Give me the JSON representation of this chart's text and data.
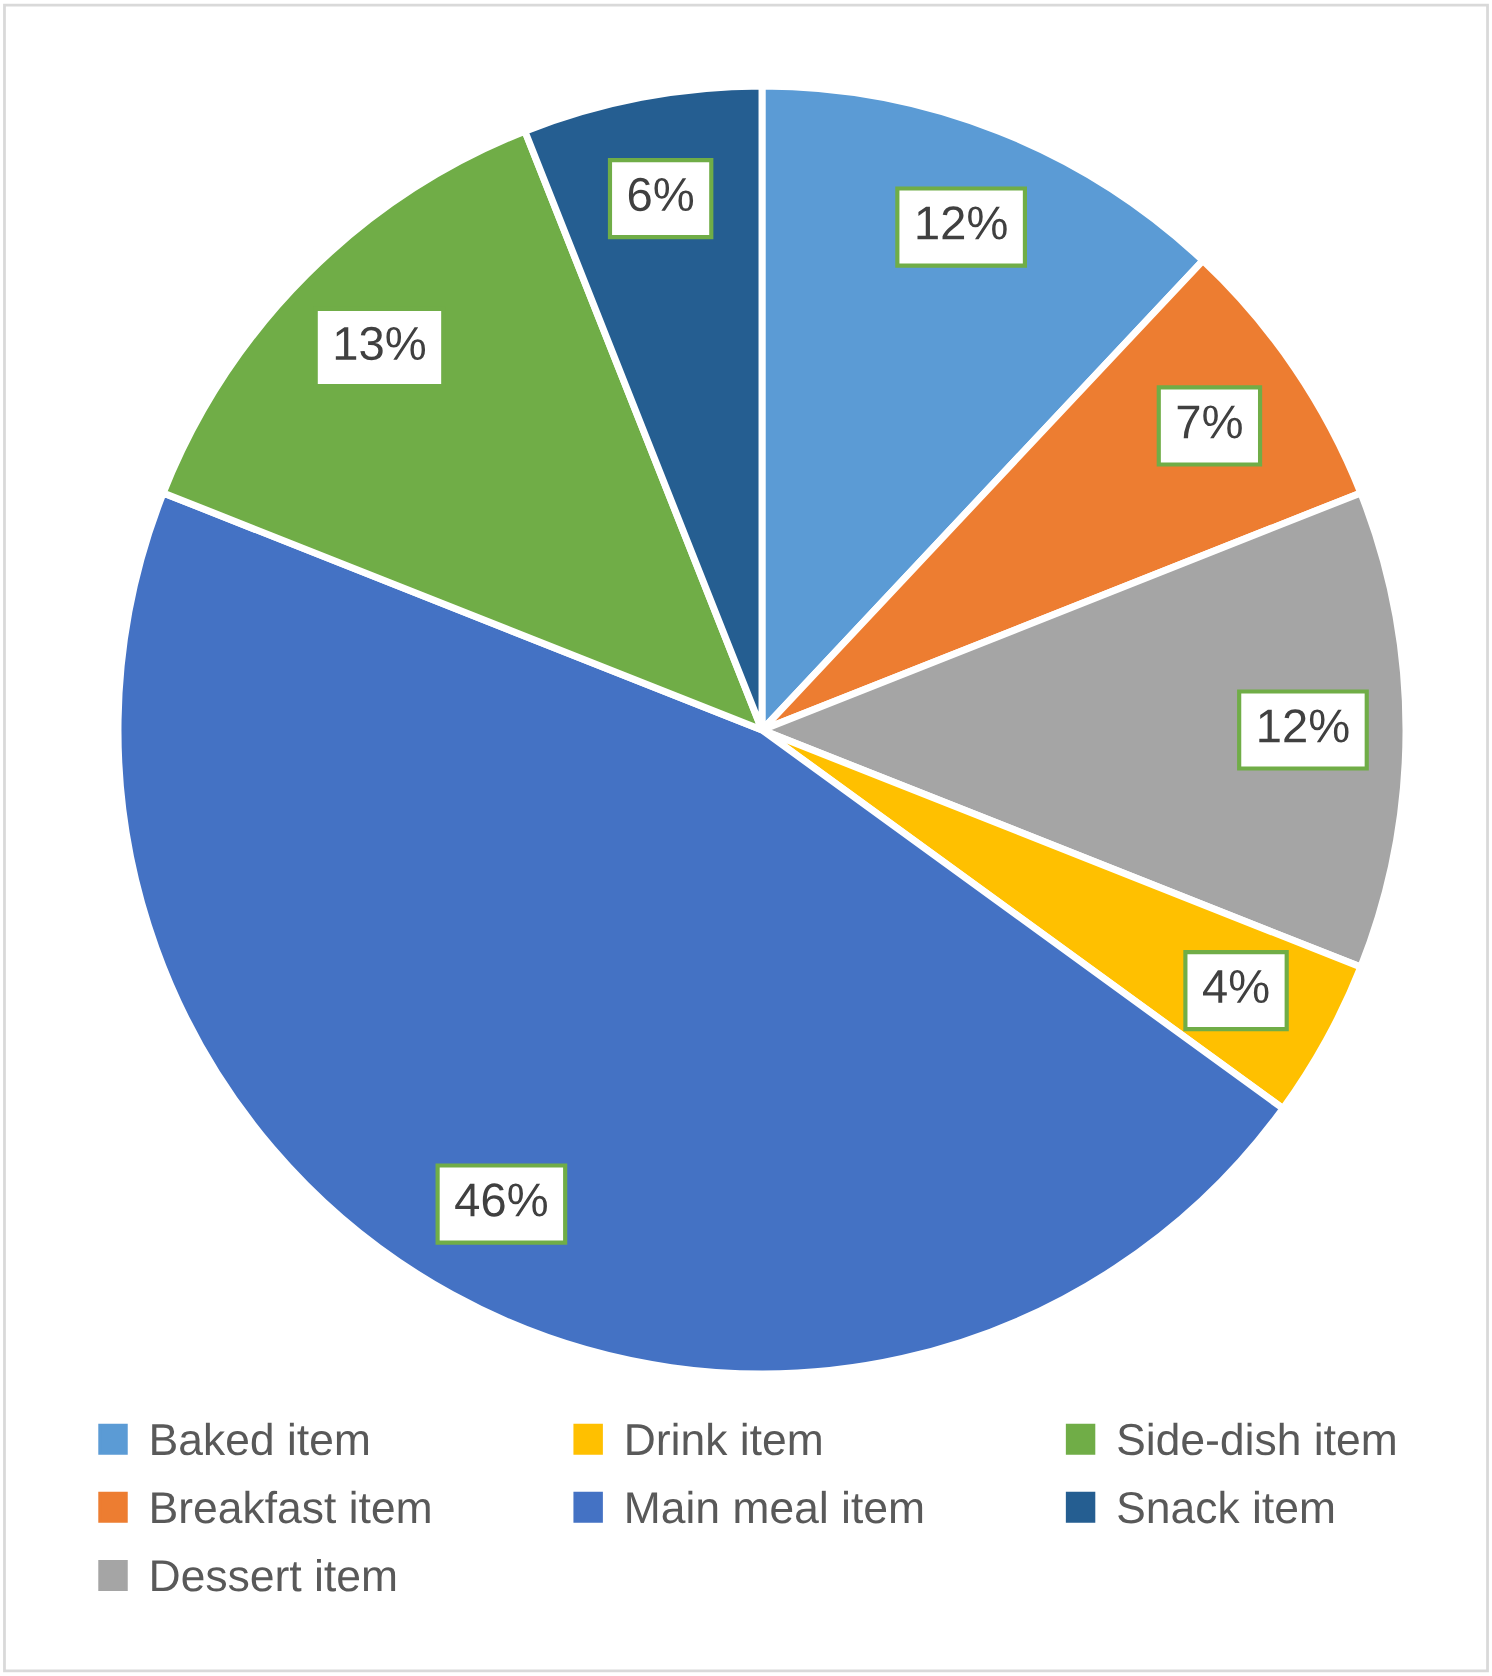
{
  "chart_data": {
    "type": "pie",
    "categories": [
      "Baked item",
      "Breakfast item",
      "Dessert item",
      "Drink item",
      "Main meal item",
      "Side-dish item",
      "Snack item"
    ],
    "values": [
      12,
      7,
      12,
      4,
      46,
      13,
      6
    ],
    "colors": [
      "#5b9bd5",
      "#ed7d31",
      "#a5a5a5",
      "#ffc000",
      "#4472c4",
      "#70ad47",
      "#255e91"
    ],
    "value_labels": [
      "12%",
      "7%",
      "12%",
      "4%",
      "46%",
      "13%",
      "6%"
    ],
    "legend": "bottom"
  }
}
